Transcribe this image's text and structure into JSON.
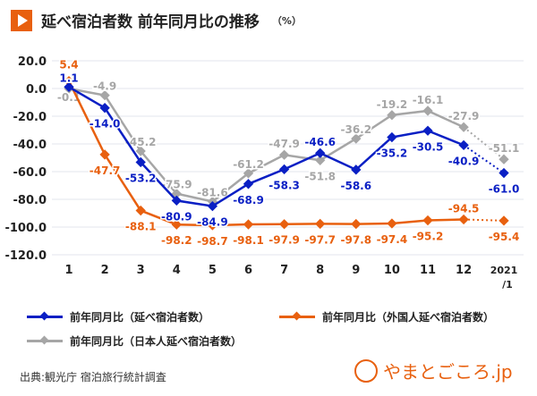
{
  "title": "延べ宿泊者数 前年同月比の推移",
  "unit": "（%）",
  "source": "出典:観光庁 宿泊旅行統計調査",
  "logo": "やまとごころ.jp",
  "chart_data": {
    "type": "line",
    "categories": [
      "1",
      "2",
      "3",
      "4",
      "5",
      "6",
      "7",
      "8",
      "9",
      "10",
      "11",
      "12",
      "2021\n/1"
    ],
    "ylim": [
      -120,
      20
    ],
    "yticks": [
      20,
      0,
      -20,
      -40,
      -60,
      -80,
      -100,
      -120
    ],
    "ytick_labels": [
      "20.0",
      "0.0",
      "-20.0",
      "-40.0",
      "-60.0",
      "-80.0",
      "-100.0",
      "-120.0"
    ],
    "grid": true,
    "legend_position": "bottom",
    "series": [
      {
        "name": "前年同月比（延べ宿泊者数）",
        "color": "#0a1fc4",
        "values": [
          1.1,
          -14.0,
          -53.2,
          -80.9,
          -84.9,
          -68.9,
          -58.3,
          -46.6,
          -58.6,
          -35.2,
          -30.5,
          -40.9,
          -61.0
        ],
        "labels": [
          "1.1",
          "-14.0",
          "-53.2",
          "-80.9",
          "-84.9",
          "-68.9",
          "-58.3",
          "-46.6",
          "-58.6",
          "-35.2",
          "-30.5",
          "-40.9",
          "-61.0"
        ]
      },
      {
        "name": "前年同月比（外国人延べ宿泊者数）",
        "color": "#e8600f",
        "values": [
          5.4,
          -47.7,
          -88.1,
          -98.2,
          -98.7,
          -98.1,
          -97.9,
          -97.7,
          -97.8,
          -97.4,
          -95.2,
          -94.5,
          -95.4
        ],
        "labels": [
          "5.4",
          "-47.7",
          "-88.1",
          "-98.2",
          "-98.7",
          "-98.1",
          "-97.9",
          "-97.7",
          "-97.8",
          "-97.4",
          "-95.2",
          "-94.5",
          "-95.4"
        ]
      },
      {
        "name": "前年同月比（日本人延べ宿泊者数）",
        "color": "#a6a6a6",
        "values": [
          -0.1,
          -4.9,
          -45.2,
          -75.9,
          -81.6,
          -61.2,
          -47.9,
          -51.8,
          -36.2,
          -19.2,
          -16.1,
          -27.9,
          -51.1
        ],
        "labels": [
          "-0.1",
          "-4.9",
          "-45.2",
          "-75.9",
          "-81.6",
          "-61.2",
          "-47.9",
          "-51.8",
          "-36.2",
          "-19.2",
          "-16.1",
          "-27.9",
          "-51.1"
        ]
      }
    ],
    "last_segment_dotted": true
  }
}
